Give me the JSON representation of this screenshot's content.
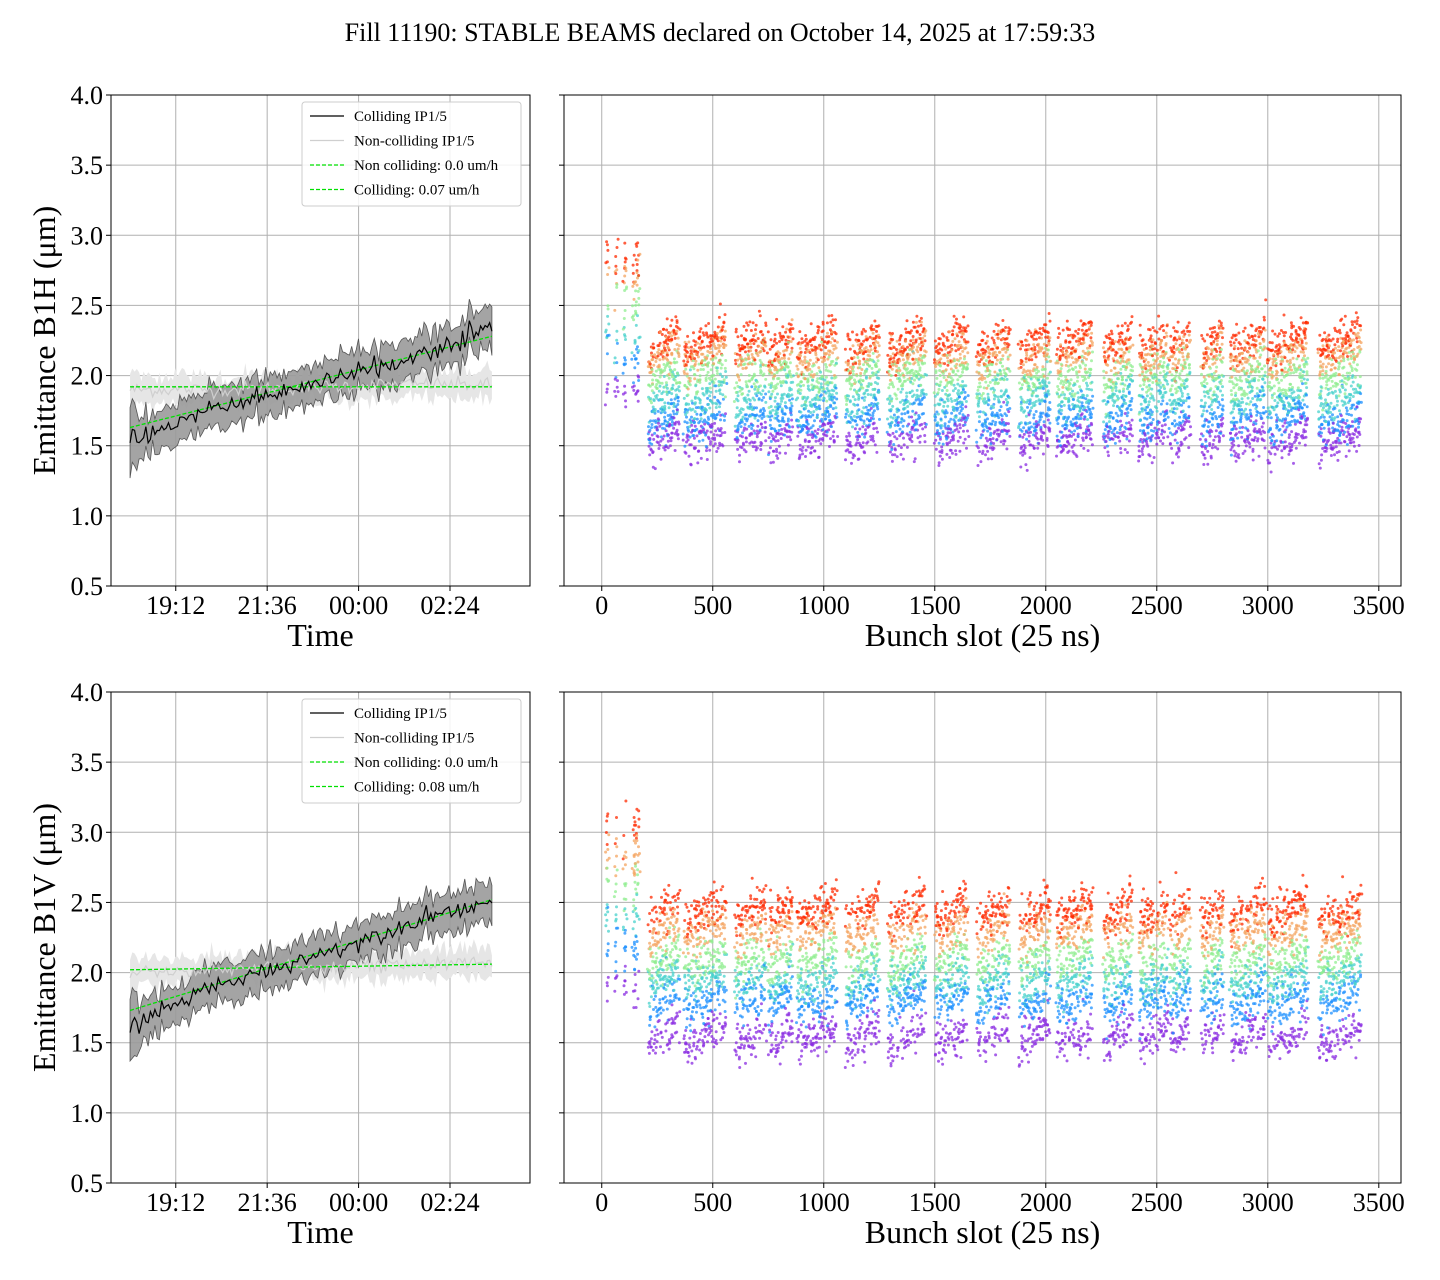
{
  "title": "Fill 11190: STABLE BEAMS declared on October 14, 2025 at 17:59:33",
  "colors": {
    "colliding": "#000000",
    "noncolliding": "#cfcfcf",
    "fit": "#00e000",
    "band_colliding": "#9a9a9a",
    "band_noncolliding": "#e6e6e6",
    "grid": "#b0b0b0"
  },
  "chart_data": [
    {
      "type": "line",
      "xlabel": "Time",
      "ylabel": "Emittance B1H (μm)",
      "ylabel_text": "Emittance B1H (",
      "ylim": [
        0.5,
        4.0
      ],
      "yticks": [
        "0.5",
        "1.0",
        "1.5",
        "2.0",
        "2.5",
        "3.0",
        "3.5",
        "4.0"
      ],
      "xlim_hours": [
        17.5,
        4.5
      ],
      "xticks": [
        "19:12",
        "21:36",
        "00:00",
        "02:24"
      ],
      "legend_position": "top-right",
      "series": [
        {
          "name": "Colliding IP1/5",
          "x": [
            "18:00",
            "20:00",
            "22:00",
            "00:00",
            "02:00",
            "03:30"
          ],
          "values": [
            1.54,
            1.75,
            1.88,
            2.02,
            2.18,
            2.34
          ]
        },
        {
          "name": "Non-colliding IP1/5",
          "x": [
            "18:00",
            "20:00",
            "22:00",
            "00:00",
            "02:00",
            "03:30"
          ],
          "values": [
            1.9,
            1.9,
            1.91,
            1.93,
            1.94,
            1.93
          ]
        },
        {
          "name": "Non colliding: 0.0 um/h",
          "x": [
            "18:00",
            "03:30"
          ],
          "values": [
            1.92,
            1.92
          ]
        },
        {
          "name": "Colliding: 0.07 um/h",
          "x": [
            "18:00",
            "03:30"
          ],
          "values": [
            1.63,
            2.28
          ]
        }
      ]
    },
    {
      "type": "scatter",
      "xlabel": "Bunch slot (25 ns)",
      "ylabel": "",
      "xlim": [
        -170,
        3600
      ],
      "ylim": [
        0.5,
        4.0
      ],
      "xticks": [
        "0",
        "500",
        "1000",
        "1500",
        "2000",
        "2500",
        "3000",
        "3500"
      ],
      "trains_start_slot": [
        20,
        60,
        100,
        140,
        210,
        370,
        600,
        750,
        880,
        1100,
        1290,
        1500,
        1690,
        1880,
        2050,
        2260,
        2420,
        2560,
        2700,
        2830,
        3000,
        3230
      ],
      "trains_end_slot": [
        30,
        70,
        110,
        170,
        350,
        560,
        740,
        860,
        1060,
        1250,
        1460,
        1650,
        1840,
        2020,
        2210,
        2390,
        2550,
        2650,
        2800,
        2990,
        3180,
        3420
      ],
      "level_bands": [
        1.55,
        1.7,
        1.85,
        2.0,
        2.15,
        2.25
      ],
      "level_colors": [
        "#8a2be2",
        "#1e90ff",
        "#48d1cc",
        "#90ee90",
        "#f4a460",
        "#ff2a00"
      ]
    },
    {
      "type": "line",
      "xlabel": "Time",
      "ylabel": "Emittance B1V (μm)",
      "ylabel_text": "Emittance B1V (",
      "ylim": [
        0.5,
        4.0
      ],
      "yticks": [
        "0.5",
        "1.0",
        "1.5",
        "2.0",
        "2.5",
        "3.0",
        "3.5",
        "4.0"
      ],
      "xlim_hours": [
        17.5,
        4.5
      ],
      "xticks": [
        "19:12",
        "21:36",
        "00:00",
        "02:24"
      ],
      "legend_position": "top-right",
      "series": [
        {
          "name": "Colliding IP1/5",
          "x": [
            "18:00",
            "20:00",
            "22:00",
            "00:00",
            "02:00",
            "03:30"
          ],
          "values": [
            1.62,
            1.88,
            2.05,
            2.22,
            2.42,
            2.5
          ]
        },
        {
          "name": "Non-colliding IP1/5",
          "x": [
            "18:00",
            "20:00",
            "22:00",
            "00:00",
            "02:00",
            "03:30"
          ],
          "values": [
            2.0,
            2.02,
            2.04,
            2.05,
            2.06,
            2.07
          ]
        },
        {
          "name": "Non colliding: 0.0 um/h",
          "x": [
            "18:00",
            "03:30"
          ],
          "values": [
            2.02,
            2.06
          ]
        },
        {
          "name": "Colliding: 0.08 um/h",
          "x": [
            "18:00",
            "03:30"
          ],
          "values": [
            1.73,
            2.52
          ]
        }
      ]
    },
    {
      "type": "scatter",
      "xlabel": "Bunch slot (25 ns)",
      "ylabel": "",
      "xlim": [
        -170,
        3600
      ],
      "ylim": [
        0.5,
        4.0
      ],
      "xticks": [
        "0",
        "500",
        "1000",
        "1500",
        "2000",
        "2500",
        "3000",
        "3500"
      ],
      "trains_start_slot": [
        20,
        60,
        100,
        140,
        210,
        370,
        600,
        750,
        880,
        1100,
        1290,
        1500,
        1690,
        1880,
        2050,
        2260,
        2420,
        2560,
        2700,
        2830,
        3000,
        3230
      ],
      "trains_end_slot": [
        30,
        70,
        110,
        170,
        350,
        560,
        740,
        860,
        1060,
        1250,
        1460,
        1650,
        1840,
        2020,
        2210,
        2390,
        2550,
        2650,
        2800,
        2990,
        3180,
        3420
      ],
      "level_bands": [
        1.55,
        1.8,
        1.95,
        2.1,
        2.3,
        2.45
      ],
      "level_colors": [
        "#8a2be2",
        "#1e90ff",
        "#48d1cc",
        "#90ee90",
        "#f4a460",
        "#ff2a00"
      ]
    }
  ]
}
